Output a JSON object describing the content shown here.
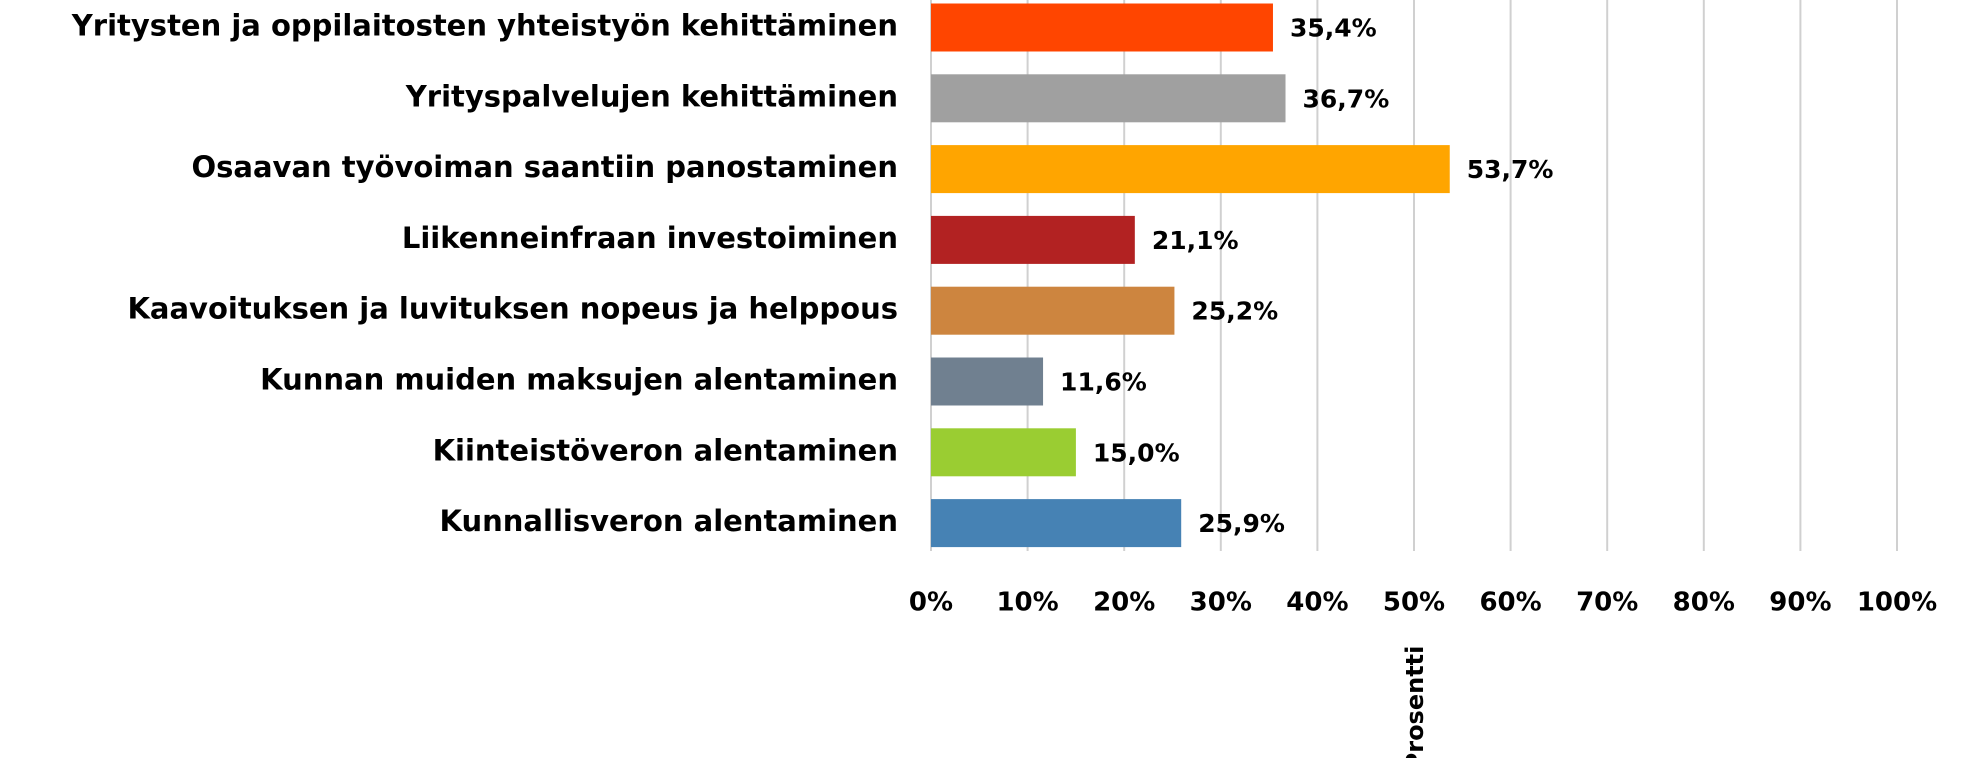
{
  "chart_data": {
    "type": "barh",
    "categories": [
      "Yritysten ja oppilaitosten yhteistyön kehittäminen",
      "Yrityspalvelujen kehittäminen",
      "Osaavan työvoiman saantiin panostaminen",
      "Liikenneinfraan investoiminen",
      "Kaavoituksen ja luvituksen nopeus ja helppous",
      "Kunnan muiden maksujen alentaminen",
      "Kiinteistöveron alentaminen",
      "Kunnallisveron alentaminen"
    ],
    "values": [
      35.4,
      36.7,
      53.7,
      21.1,
      25.2,
      11.6,
      15.0,
      25.9
    ],
    "value_labels": [
      "35,4%",
      "36,7%",
      "53,7%",
      "21,1%",
      "25,2%",
      "11,6%",
      "15,0%",
      "25,9%"
    ],
    "colors": [
      "#ff4500",
      "#a0a0a0",
      "#ffa500",
      "#b22222",
      "#cd853f",
      "#708090",
      "#9acd32",
      "#4682b4"
    ],
    "xlabel": "Prosentti",
    "xlim": [
      0,
      100
    ],
    "xticks": [
      {
        "value": 0,
        "label": "0%"
      },
      {
        "value": 10,
        "label": "10%"
      },
      {
        "value": 20,
        "label": "20%"
      },
      {
        "value": 30,
        "label": "30%"
      },
      {
        "value": 40,
        "label": "40%"
      },
      {
        "value": 50,
        "label": "50%"
      },
      {
        "value": 60,
        "label": "60%"
      },
      {
        "value": 70,
        "label": "70%"
      },
      {
        "value": 80,
        "label": "80%"
      },
      {
        "value": 90,
        "label": "90%"
      },
      {
        "value": 100,
        "label": "100%"
      }
    ],
    "grid": true
  }
}
